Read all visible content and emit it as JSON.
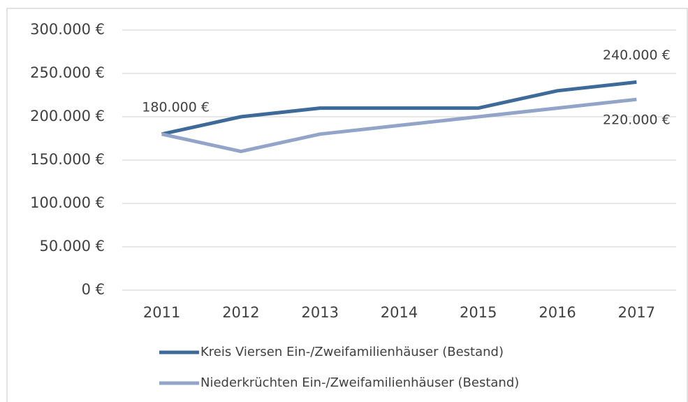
{
  "chart_data": {
    "type": "line",
    "categories": [
      "2011",
      "2012",
      "2013",
      "2014",
      "2015",
      "2016",
      "2017"
    ],
    "series": [
      {
        "name": "Kreis Viersen Ein-/Zweifamilienhäuser (Bestand)",
        "color": "#3d6a99",
        "values": [
          180000,
          200000,
          210000,
          210000,
          210000,
          230000,
          240000
        ],
        "value_labels": [
          "180.000 €",
          null,
          null,
          null,
          null,
          null,
          "240.000 €"
        ]
      },
      {
        "name": "Niederkrüchten Ein-/Zweifamilienhäuser (Bestand)",
        "color": "#92a5c9",
        "values": [
          180000,
          160000,
          180000,
          190000,
          200000,
          210000,
          220000
        ],
        "value_labels": [
          null,
          null,
          null,
          null,
          null,
          null,
          "220.000 €"
        ]
      }
    ],
    "ylim": [
      0,
      300000
    ],
    "yticks": [
      {
        "value": 0,
        "label": "0 €"
      },
      {
        "value": 50000,
        "label": "50.000 €"
      },
      {
        "value": 100000,
        "label": "100.000 €"
      },
      {
        "value": 150000,
        "label": "150.000 €"
      },
      {
        "value": 200000,
        "label": "200.000 €"
      },
      {
        "value": 250000,
        "label": "250.000 €"
      },
      {
        "value": 300000,
        "label": "300.000 €"
      }
    ],
    "grid": true,
    "legend": "bottom"
  }
}
